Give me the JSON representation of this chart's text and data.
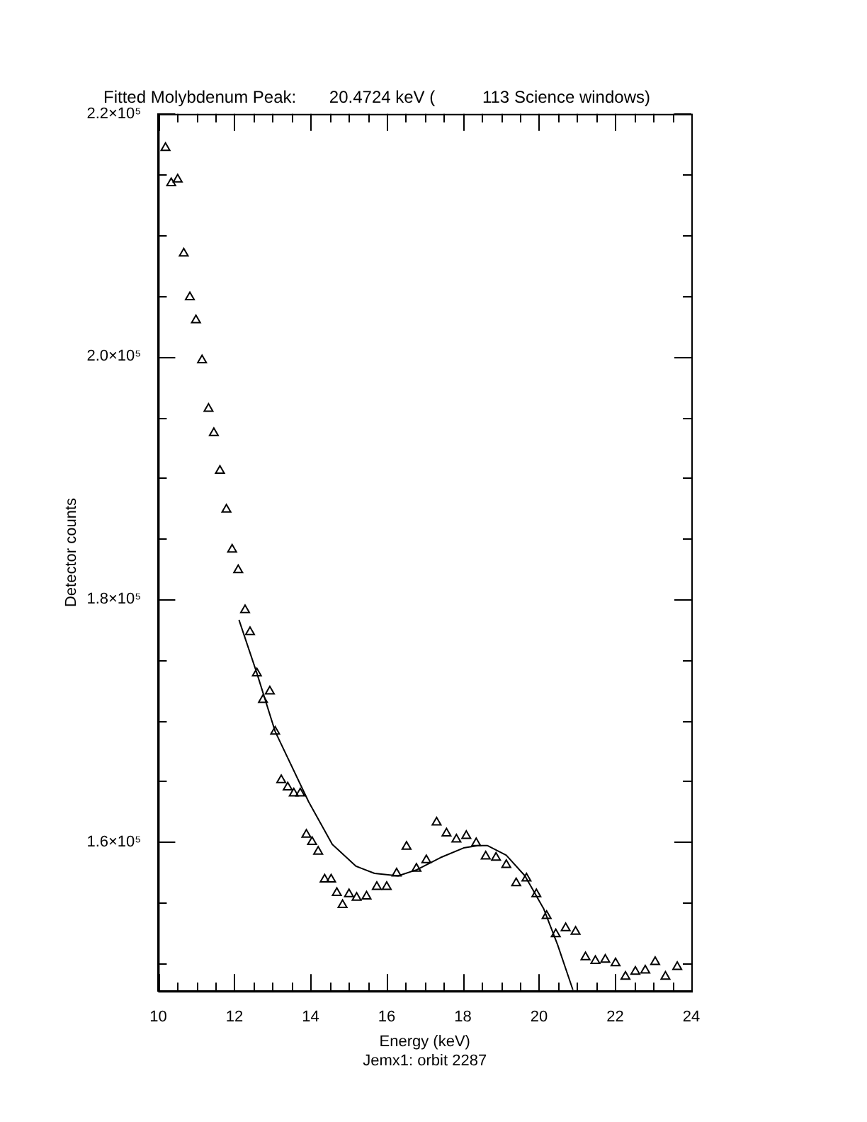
{
  "chart_data": {
    "type": "scatter",
    "title": "Fitted Molybdenum Peak:       20.4724 keV (          113 Science windows)",
    "xlabel": "Energy (keV)",
    "ylabel": "Detector counts",
    "annotations": [
      "Jemx1: orbit 2287"
    ],
    "xlim": [
      10,
      24
    ],
    "xticks": [
      10,
      {
        "value": 10.5,
        "label": null
      },
      {
        "value": 11,
        "label": null
      },
      {
        "value": 11.5,
        "label": null
      },
      12,
      {
        "value": 12.5,
        "label": null
      },
      {
        "value": 13,
        "label": null
      },
      {
        "value": 13.5,
        "label": null
      },
      14,
      {
        "value": 14.5,
        "label": null
      },
      {
        "value": 15,
        "label": null
      },
      {
        "value": 15.5,
        "label": null
      },
      16,
      {
        "value": 16.5,
        "label": null
      },
      {
        "value": 17,
        "label": null
      },
      {
        "value": 17.5,
        "label": null
      },
      18,
      {
        "value": 18.5,
        "label": null
      },
      {
        "value": 19,
        "label": null
      },
      {
        "value": 19.5,
        "label": null
      },
      20,
      {
        "value": 20.5,
        "label": null
      },
      {
        "value": 21,
        "label": null
      },
      {
        "value": 21.5,
        "label": null
      },
      22,
      {
        "value": 22.5,
        "label": null
      },
      {
        "value": 23,
        "label": null
      },
      {
        "value": 23.5,
        "label": null
      },
      24
    ],
    "ylim": [
      147700,
      220000
    ],
    "yticks": [
      {
        "value": 150000,
        "label": null
      },
      {
        "value": 155000,
        "label": null
      },
      {
        "value": 160000,
        "label": "1.6×10⁵"
      },
      {
        "value": 165000,
        "label": null
      },
      {
        "value": 170000,
        "label": null
      },
      {
        "value": 175000,
        "label": null
      },
      {
        "value": 180000,
        "label": "1.8×10⁵"
      },
      {
        "value": 185000,
        "label": null
      },
      {
        "value": 190000,
        "label": null
      },
      {
        "value": 195000,
        "label": null
      },
      {
        "value": 200000,
        "label": "2.0×10⁵"
      },
      {
        "value": 205000,
        "label": null
      },
      {
        "value": 210000,
        "label": null
      },
      {
        "value": 215000,
        "label": null
      },
      {
        "value": 220000,
        "label": "2.2×10⁵"
      }
    ],
    "series": [
      {
        "marker": "triangle",
        "color": "#000000",
        "x": [
          10.19,
          10.34,
          10.51,
          10.67,
          10.83,
          10.99,
          11.15,
          11.32,
          11.46,
          11.62,
          11.79,
          11.94,
          12.1,
          12.28,
          12.41,
          12.59,
          12.75,
          12.93,
          13.07,
          13.23,
          13.4,
          13.56,
          13.73,
          13.89,
          14.04,
          14.2,
          14.37,
          14.54,
          14.69,
          14.84,
          15.01,
          15.21,
          15.47,
          15.74,
          16.0,
          16.26,
          16.52,
          16.78,
          17.04,
          17.31,
          17.57,
          17.83,
          18.09,
          18.35,
          18.6,
          18.87,
          19.14,
          19.4,
          19.67,
          19.93,
          20.2,
          20.44,
          20.7,
          20.96,
          21.22,
          21.48,
          21.74,
          22.01,
          22.27,
          22.53,
          22.79,
          23.05,
          23.32,
          23.63
        ],
        "values": [
          217200,
          214300,
          214600,
          208500,
          204900,
          203000,
          199700,
          195700,
          193700,
          190600,
          187400,
          184100,
          182400,
          179100,
          177300,
          173900,
          171700,
          172400,
          169100,
          165100,
          164500,
          164000,
          164000,
          160600,
          160000,
          159200,
          156900,
          156900,
          155800,
          154800,
          155700,
          155400,
          155500,
          156300,
          156300,
          157400,
          159600,
          157800,
          158500,
          161600,
          160700,
          160200,
          160500,
          159900,
          158800,
          158700,
          158100,
          156600,
          157000,
          155700,
          153900,
          152400,
          152900,
          152600,
          150500,
          150200,
          150300,
          150000,
          148900,
          149300,
          149400,
          150100,
          148900,
          149700
        ]
      },
      {
        "type": "line",
        "marker": "none",
        "line_style": "solid",
        "color": "#000000",
        "x": [
          12.12,
          12.59,
          13.07,
          13.95,
          14.57,
          15.19,
          15.68,
          16.3,
          16.79,
          17.41,
          18.02,
          18.4,
          18.64,
          19.14,
          19.63,
          20.12,
          20.49,
          20.89
        ],
        "values": [
          178300,
          173900,
          169100,
          163300,
          159800,
          158000,
          157400,
          157200,
          157700,
          158700,
          159500,
          159700,
          159700,
          158900,
          157200,
          154500,
          151500,
          147800
        ]
      }
    ]
  }
}
